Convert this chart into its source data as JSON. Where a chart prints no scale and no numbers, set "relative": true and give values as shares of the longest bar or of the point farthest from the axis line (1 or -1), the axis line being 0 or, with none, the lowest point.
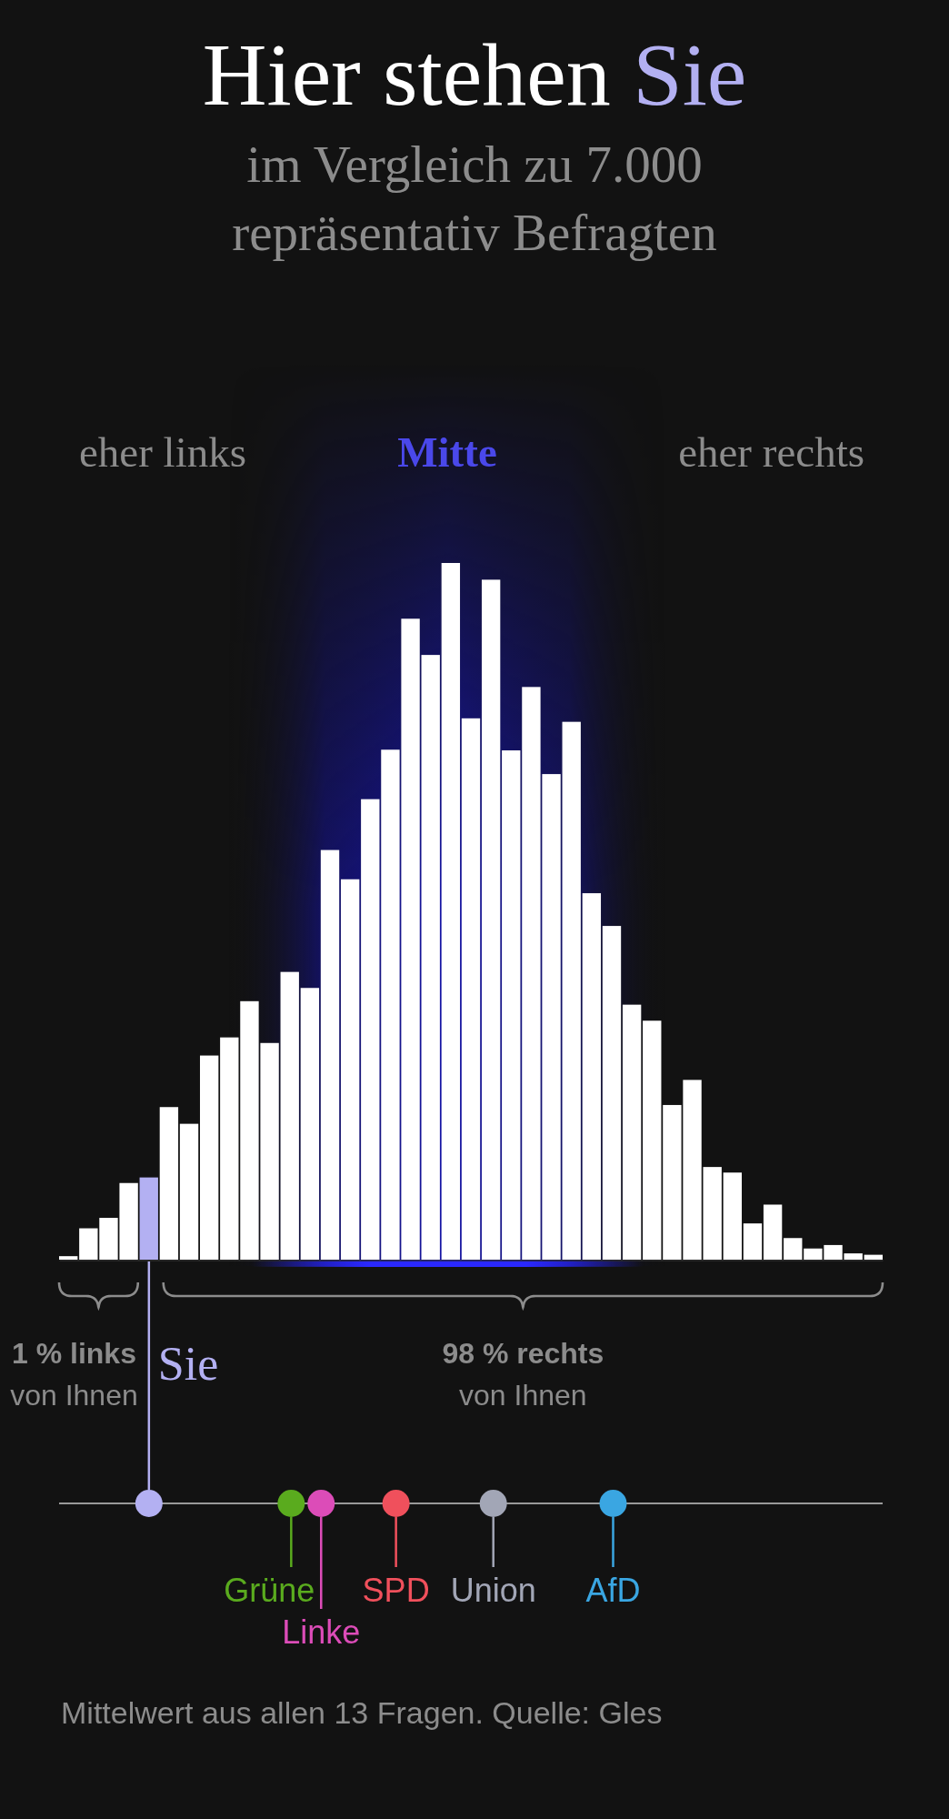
{
  "chart_data": [
    {
      "type": "bar",
      "title": "Hier stehen Sie",
      "subtitle": "im Vergleich zu 7.000 repräsentativ Befragten",
      "relative": true,
      "categories": [
        null,
        null,
        null,
        null,
        null,
        null,
        null,
        null,
        null,
        null,
        null,
        null,
        null,
        null,
        null,
        null,
        null,
        null,
        null,
        null,
        null,
        null,
        null,
        null,
        null,
        null,
        null,
        null,
        null,
        null,
        null,
        null,
        null,
        null,
        null,
        null,
        null,
        null,
        null,
        null,
        null
      ],
      "values": [
        0.005,
        0.045,
        0.06,
        0.11,
        0.118,
        0.219,
        0.195,
        0.293,
        0.319,
        0.371,
        0.311,
        0.413,
        0.39,
        0.588,
        0.546,
        0.661,
        0.732,
        0.92,
        0.868,
        1,
        0.777,
        0.976,
        0.731,
        0.822,
        0.697,
        0.772,
        0.526,
        0.479,
        0.366,
        0.343,
        0.222,
        0.258,
        0.133,
        0.125,
        0.052,
        0.079,
        0.031,
        0.016,
        0.021,
        0.009,
        0.007
      ],
      "colors": [
        "#ffffff",
        "#ffffff",
        "#ffffff",
        "#ffffff",
        "#b3b0f2",
        "#ffffff",
        "#ffffff",
        "#ffffff",
        "#ffffff",
        "#ffffff",
        "#ffffff",
        "#ffffff",
        "#ffffff",
        "#ffffff",
        "#ffffff",
        "#ffffff",
        "#ffffff",
        "#ffffff",
        "#ffffff",
        "#ffffff",
        "#ffffff",
        "#ffffff",
        "#ffffff",
        "#ffffff",
        "#ffffff",
        "#ffffff",
        "#ffffff",
        "#ffffff",
        "#ffffff",
        "#ffffff",
        "#ffffff",
        "#ffffff",
        "#ffffff",
        "#ffffff",
        "#ffffff",
        "#ffffff",
        "#ffffff",
        "#ffffff",
        "#ffffff",
        "#ffffff",
        "#ffffff"
      ],
      "annotations": [
        "eher links",
        "Mitte",
        "eher rechts",
        "1 % links",
        "von Ihnen",
        "98 % rechts",
        "von Ihnen"
      ]
    },
    {
      "type": "other",
      "categories": [
        null,
        null,
        null,
        null,
        null,
        null,
        null,
        null,
        null,
        null,
        null,
        null,
        "Sie",
        null,
        null,
        null,
        null,
        null,
        null,
        null,
        null,
        null,
        null,
        null,
        null,
        null,
        null,
        null,
        null,
        null,
        null,
        "Grüne",
        null,
        null,
        null,
        "Linke",
        null,
        null,
        null,
        null,
        null,
        null,
        null,
        null,
        null,
        "SPD",
        null,
        null,
        null,
        null,
        null,
        null,
        null,
        null,
        null,
        null,
        null,
        null,
        "Union",
        null,
        null,
        null,
        null,
        null,
        null,
        null,
        null,
        null,
        null,
        null,
        null,
        null,
        null,
        null,
        "AfD",
        null,
        null,
        null,
        null,
        null,
        null,
        null,
        null,
        null,
        null,
        null,
        null,
        null,
        null,
        null,
        null,
        null,
        null,
        null,
        null,
        null,
        null,
        null,
        null,
        null,
        null,
        null,
        null,
        null,
        null,
        null,
        null,
        null,
        null,
        null,
        null
      ],
      "colors": [
        "#b3b0f2",
        "#5aab1e",
        "#dc4cb8",
        "#f0505c",
        "#a2a6b6",
        "#3aa6e2"
      ],
      "annotations": [
        "Mittelwert aus allen 13 Fragen. Quelle: Gles"
      ]
    }
  ]
}
